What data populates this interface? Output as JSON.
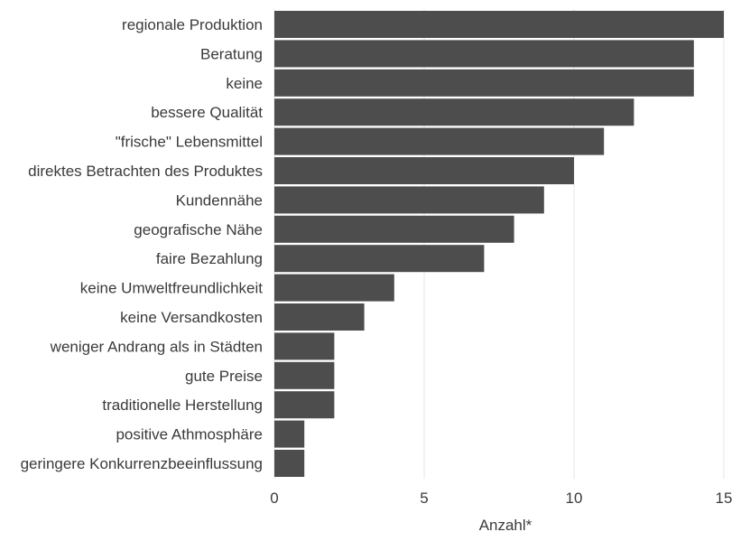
{
  "chart_data": {
    "type": "bar",
    "orientation": "horizontal",
    "categories": [
      "regionale Produktion",
      "Beratung",
      "keine",
      "bessere Qualität",
      "\"frische\" Lebensmittel",
      "direktes Betrachten des Produktes",
      "Kundennähe",
      "geografische Nähe",
      "faire Bezahlung",
      "keine Umweltfreundlichkeit",
      "keine Versandkosten",
      "weniger Andrang als in Städten",
      "gute Preise",
      "traditionelle Herstellung",
      "positive Athmosphäre",
      "geringere Konkurrenzbeeinflussung"
    ],
    "values": [
      15,
      14,
      14,
      12,
      11,
      10,
      9,
      8,
      7,
      4,
      3,
      2,
      2,
      2,
      1,
      1
    ],
    "xlabel": "Anzahl*",
    "xlim": [
      0,
      15
    ],
    "xticks": [
      "0",
      "5",
      "10",
      "15"
    ],
    "grid": true,
    "bar_color": "#4d4d4d"
  }
}
